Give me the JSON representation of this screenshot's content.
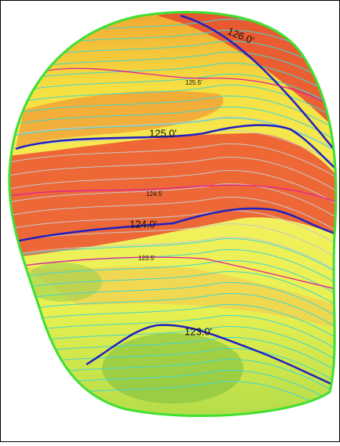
{
  "contour_labels": [
    "126.0'",
    "125.5'",
    "125.0'",
    "124.5'",
    "124.0'",
    "123.5'",
    "123.0'"
  ]
}
